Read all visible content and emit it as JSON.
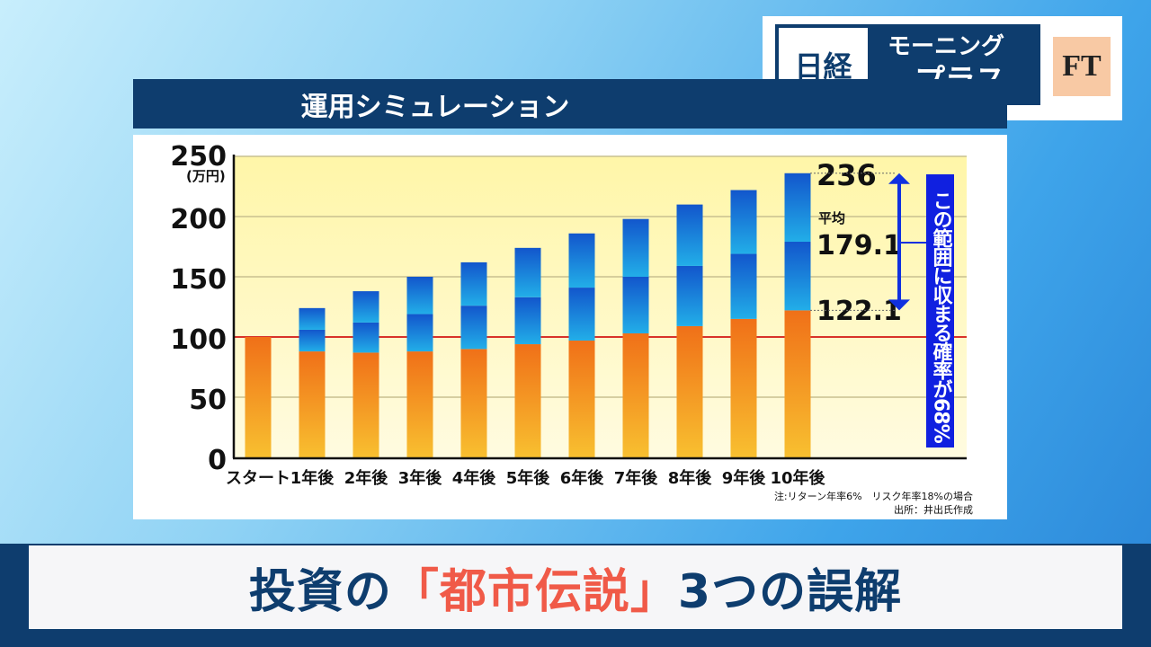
{
  "logo": {
    "nikkei": "日経",
    "program_line1": "モーニング",
    "program_line2": "プラス",
    "ft": "FT"
  },
  "chart_title": "運用シミュレーション",
  "caption": {
    "part1": "投資の",
    "highlight": "「都市伝説」",
    "part2": "3つの誤解"
  },
  "colors": {
    "navy": "#0e3d6e",
    "orange": "#f07818",
    "blue": "#1a6ad8",
    "red_line": "#d8322a",
    "accent_red": "#f05a48"
  },
  "chart_data": {
    "type": "bar",
    "title": "運用シミュレーション",
    "ylabel": "(万円)",
    "ylim": [
      0,
      250
    ],
    "yticks": [
      0,
      50,
      100,
      150,
      200,
      250
    ],
    "grid": true,
    "categories": [
      "スタート",
      "1年後",
      "2年後",
      "3年後",
      "4年後",
      "5年後",
      "6年後",
      "7年後",
      "8年後",
      "9年後",
      "10年後"
    ],
    "series": [
      {
        "name": "lower",
        "values": [
          100,
          88,
          87,
          88,
          90,
          94,
          97,
          103,
          109,
          115,
          122.1
        ]
      },
      {
        "name": "mean",
        "values": [
          100,
          106,
          112,
          119,
          126,
          133,
          141,
          150,
          159,
          169,
          179.1
        ]
      },
      {
        "name": "upper",
        "values": [
          100,
          124,
          138,
          150,
          162,
          174,
          186,
          198,
          210,
          222,
          236
        ]
      }
    ],
    "reference_line": 100,
    "annotations": {
      "upper": "236",
      "mean_label": "平均",
      "mean": "179.1",
      "lower": "122.1",
      "range_note": "この範囲に収まる確率が68%"
    },
    "notes": [
      "注:リターン年率6%　リスク年率18%の場合",
      "出所：井出氏作成"
    ]
  }
}
